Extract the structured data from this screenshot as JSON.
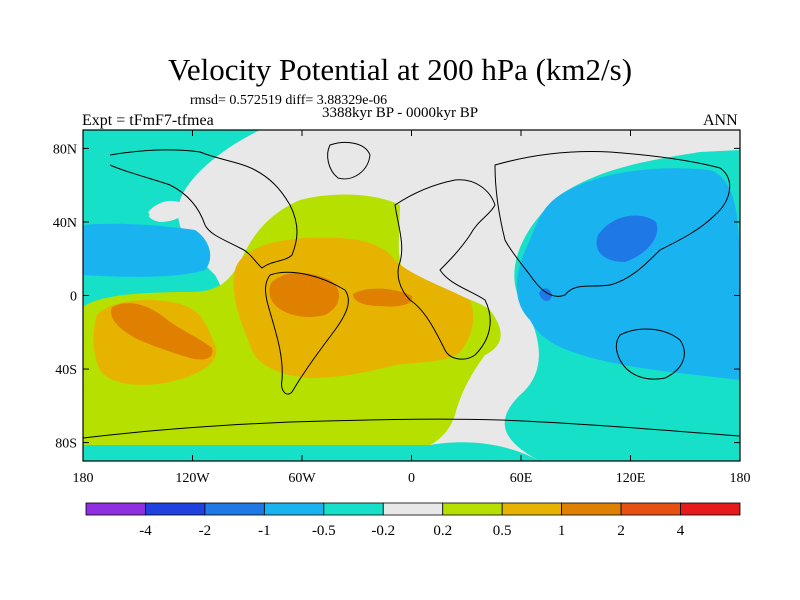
{
  "chart_data": {
    "type": "map",
    "title": "Velocity Potential at 200 hPa (km2/s)",
    "stats_text": "rmsd= 0.572519  diff= 3.88329e-06",
    "period_text": "3388kyr BP - 0000kyr BP",
    "left_label": "Expt = tFmF7-tfmea",
    "right_label": "ANN",
    "projection": "cylindrical equidistant",
    "lon_range": [
      -180,
      180
    ],
    "lat_range": [
      -90,
      90
    ],
    "lon_ticks": [
      {
        "value": -180,
        "label": "180"
      },
      {
        "value": -120,
        "label": "120W"
      },
      {
        "value": -60,
        "label": "60W"
      },
      {
        "value": 0,
        "label": "0"
      },
      {
        "value": 60,
        "label": "60E"
      },
      {
        "value": 120,
        "label": "120E"
      },
      {
        "value": 180,
        "label": "180"
      }
    ],
    "lat_ticks": [
      {
        "value": 80,
        "label": "80N"
      },
      {
        "value": 40,
        "label": "40N"
      },
      {
        "value": 0,
        "label": "0"
      },
      {
        "value": -40,
        "label": "40S"
      },
      {
        "value": -80,
        "label": "80S"
      }
    ],
    "colorbar": {
      "colors": [
        "#8f2fe0",
        "#2040e0",
        "#1e78e6",
        "#19b4f0",
        "#17e0c8",
        "#e8e8e8",
        "#b6e000",
        "#e6b400",
        "#e08000",
        "#e65010",
        "#e61a1a"
      ],
      "labels": [
        "-4",
        "-2",
        "-1",
        "-0.5",
        "-0.2",
        "0.2",
        "0.5",
        "1",
        "2",
        "4"
      ]
    },
    "field_regions": [
      {
        "level_range": "-0.5 to -0.2",
        "description": "background over polar and Pacific regions",
        "color_index": 4
      },
      {
        "level_range": "-0.2 to 0.2",
        "description": "neutral band over North Atlantic, Eurasia and Africa",
        "color_index": 5
      },
      {
        "level_range": "0.2 to 0.5",
        "description": "Atlantic and eastern Pacific positive region",
        "color_index": 6
      },
      {
        "level_range": "0.5 to 1",
        "description": "tropical Atlantic and South Pacific",
        "color_index": 7
      },
      {
        "level_range": "1 to 2",
        "description": "Amazon and South Pacific maxima",
        "color_index": 8
      },
      {
        "level_range": "-1 to -0.5",
        "description": "western Pacific and Indian Ocean",
        "color_index": 3
      },
      {
        "level_range": "-2 to -1",
        "description": "East Asia minimum",
        "color_index": 2
      }
    ]
  }
}
